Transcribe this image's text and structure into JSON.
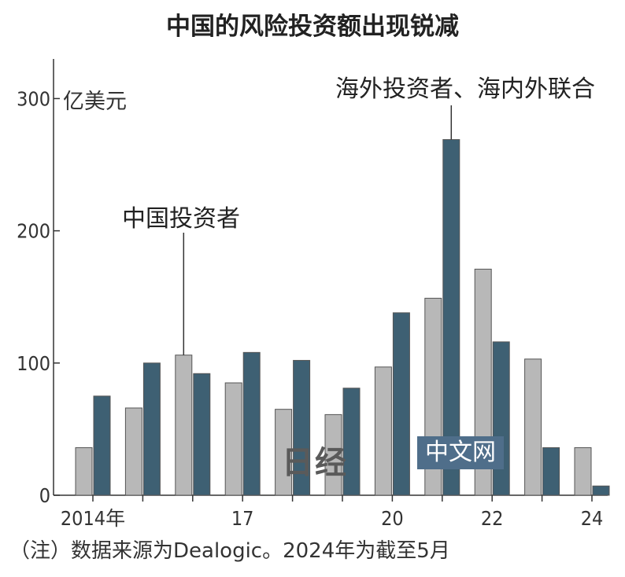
{
  "chart_data": {
    "type": "bar",
    "title": "中国的风险投资额出现锐减",
    "ylabel": "亿美元",
    "xlabel": "",
    "ylim": [
      0,
      330
    ],
    "yticks": [
      0,
      100,
      200,
      300
    ],
    "categories": [
      "2014",
      "2015",
      "2016",
      "2017",
      "2018",
      "2019",
      "2020",
      "2021",
      "2022",
      "2023",
      "2024"
    ],
    "category_labels": {
      "2014": "2014年",
      "2017": "17",
      "2020": "20",
      "2022": "22",
      "2024": "24"
    },
    "series": [
      {
        "name": "中国投资者",
        "color": "#b8b8b8",
        "values": [
          36,
          66,
          106,
          85,
          65,
          61,
          97,
          149,
          171,
          103,
          36
        ]
      },
      {
        "name": "海外投资者、海内外联合",
        "color": "#3e6073",
        "values": [
          75,
          100,
          92,
          108,
          102,
          81,
          138,
          269,
          116,
          36,
          7
        ]
      }
    ],
    "grid": false,
    "legend": "annotations on bars"
  },
  "note": "（注）数据来源为Dealogic。2024年为截至5月",
  "watermark": {
    "logo": "日经",
    "badge": "中文网"
  }
}
